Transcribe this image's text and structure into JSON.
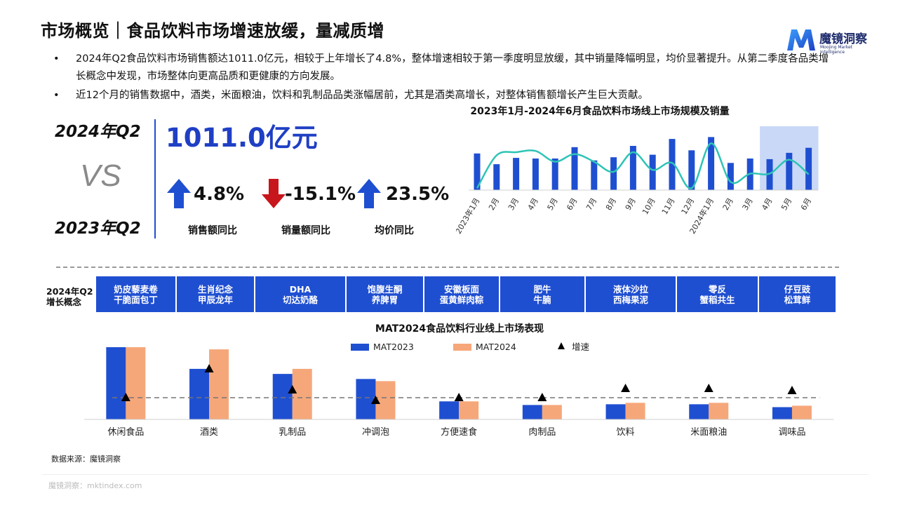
{
  "header": {
    "title": "市场概览｜食品饮料市场增速放缓，量减质增",
    "logo_cn": "魔镜洞察",
    "logo_en": "Moojing Market Intelligence"
  },
  "bullets": [
    "2024年Q2食品饮料市场销售额达1011.0亿元，相较于上年增长了4.8%，整体增速相较于第一季度明显放缓，其中销量降幅明显，均价显著提升。从第二季度各品类增长概念中发现，市场整体向更高品质和更健康的方向发展。",
    "近12个月的销售数据中，酒类，米面粮油，饮料和乳制品品类涨幅居前，尤其是酒类高增长，对整体销售额增长产生巨大贡献。"
  ],
  "comparison": {
    "label_top": "2024年Q2",
    "vs": "VS",
    "label_bottom": "2023年Q2",
    "total": "1011.0亿元",
    "metrics": [
      {
        "value": "4.8%",
        "label": "销售额同比",
        "direction": "up",
        "color": "#1f4fd1"
      },
      {
        "value": "-15.1%",
        "label": "销量额同比",
        "direction": "down",
        "color": "#c8161d"
      },
      {
        "value": "23.5%",
        "label": "均价同比",
        "direction": "up",
        "color": "#1f4fd1"
      }
    ]
  },
  "concepts": {
    "label_line1": "2024年Q2",
    "label_line2": "增长概念",
    "items": [
      {
        "line1": "奶皮藜麦卷",
        "line2": "干脆面包丁"
      },
      {
        "line1": "生肖纪念",
        "line2": "甲辰龙年"
      },
      {
        "line1": "DHA",
        "line2": "切达奶酪"
      },
      {
        "line1": "饱腹生酮",
        "line2": "养脾胃"
      },
      {
        "line1": "安徽板面",
        "line2": "蛋黄鲜肉粽"
      },
      {
        "line1": "肥牛",
        "line2": "牛腩"
      },
      {
        "line1": "液体沙拉",
        "line2": "西梅果泥"
      },
      {
        "line1": "零反",
        "line2": "蟹稻共生"
      },
      {
        "line1": "仔豆豉",
        "line2": "松茸鲜"
      }
    ]
  },
  "source": "数据来源：魔镜洞察",
  "footer": "魔镜洞察：mktindex.com",
  "colors": {
    "blue": "#1f4fd1",
    "orange": "#f6a77a",
    "teal": "#2ec4b6",
    "highlight": "#c9d8f7"
  },
  "chart_data": [
    {
      "type": "bar",
      "title": "2023年1月-2024年6月食品饮料市场线上市场规模及销量",
      "categories": [
        "2023年1月",
        "2月",
        "3月",
        "4月",
        "5月",
        "6月",
        "7月",
        "8月",
        "9月",
        "10月",
        "11月",
        "12月",
        "2024年1月",
        "2月",
        "3月",
        "4月",
        "5月",
        "6月"
      ],
      "series": [
        {
          "kind": "bar",
          "values": [
            58,
            41,
            51,
            50,
            50,
            68,
            47,
            52,
            70,
            56,
            81,
            63,
            84,
            43,
            50,
            49,
            59,
            67
          ]
        },
        {
          "kind": "line",
          "values": [
            3,
            55,
            60,
            62,
            45,
            57,
            45,
            29,
            60,
            32,
            43,
            3,
            74,
            13,
            26,
            26,
            48,
            25
          ]
        }
      ],
      "highlight": [
        "4月",
        "5月",
        "6月"
      ],
      "grid": false,
      "legend": "none"
    },
    {
      "type": "bar",
      "title": "MAT2024食品饮料行业线上市场表现",
      "categories": [
        "休闲食品",
        "酒类",
        "乳制品",
        "冲调泡",
        "方便速食",
        "肉制品",
        "饮料",
        "米面粮油",
        "调味品"
      ],
      "series": [
        {
          "name": "MAT2023",
          "values": [
            100,
            70,
            63,
            56,
            25,
            20,
            21,
            21,
            17
          ]
        },
        {
          "name": "MAT2024",
          "values": [
            100,
            97,
            70,
            53,
            25,
            20,
            23,
            23,
            19
          ]
        },
        {
          "name": "增速",
          "kind": "marker",
          "values": [
            31,
            72,
            42,
            27,
            31,
            31,
            44,
            44,
            41
          ]
        }
      ],
      "reference_line": 31,
      "legend": "top"
    }
  ]
}
